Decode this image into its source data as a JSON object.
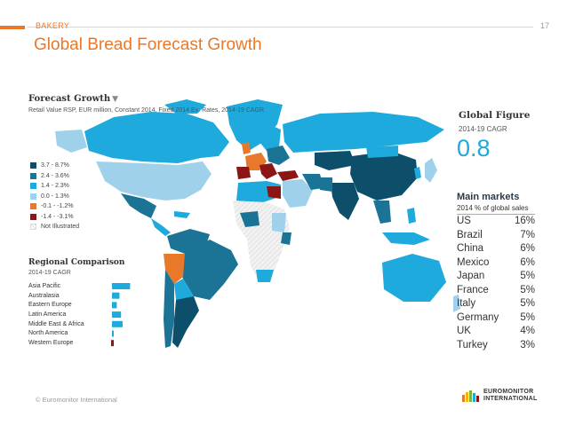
{
  "header": {
    "section": "BAKERY",
    "page_number": "17",
    "title": "Global Bread Forecast Growth"
  },
  "colors": {
    "dark_teal": "#0d4f6b",
    "teal": "#1b7396",
    "mid_blue": "#1eaadc",
    "light_blue": "#9fd2ea",
    "orange": "#e8792b",
    "dark_red": "#8c1515",
    "not_illustrated": "#e6e6e6"
  },
  "map": {
    "title": "Forecast Growth",
    "subtitle": "Retail Value RSP, EUR million, Constant 2014, Fixed 2014 Ex. Rates, 2014-19 CAGR",
    "legend": [
      {
        "label": "3.7 - 8.7%",
        "color": "#0d4f6b"
      },
      {
        "label": "2.4 - 3.6%",
        "color": "#1b7396"
      },
      {
        "label": "1.4 - 2.3%",
        "color": "#1eaadc"
      },
      {
        "label": "0.0 - 1.3%",
        "color": "#9fd2ea"
      },
      {
        "label": "-0.1 - -1.2%",
        "color": "#e8792b"
      },
      {
        "label": "-1.4 - -3.1%",
        "color": "#8c1515"
      },
      {
        "label": "Not Illustrated",
        "color": "hatch"
      }
    ]
  },
  "regional_comparison": {
    "title": "Regional Comparison",
    "subtitle": "2014-19 CAGR",
    "regions": [
      {
        "label": "Asia Pacific",
        "value": 3.4,
        "color": "#1eaadc"
      },
      {
        "label": "Australasia",
        "value": 1.4,
        "color": "#1eaadc"
      },
      {
        "label": "Eastern Europe",
        "value": 0.9,
        "color": "#1eaadc"
      },
      {
        "label": "Latin America",
        "value": 1.7,
        "color": "#1eaadc"
      },
      {
        "label": "Middle East & Africa",
        "value": 2.0,
        "color": "#1eaadc"
      },
      {
        "label": "North America",
        "value": 0.3,
        "color": "#1eaadc"
      },
      {
        "label": "Western Europe",
        "value": -0.5,
        "color": "#8c1515"
      }
    ]
  },
  "global_figure": {
    "title": "Global Figure",
    "subtitle": "2014-19 CAGR",
    "value": "0.8"
  },
  "main_markets": {
    "title": "Main markets",
    "subtitle": "2014 % of global sales",
    "rows": [
      {
        "country": "US",
        "share": "16%"
      },
      {
        "country": "Brazil",
        "share": "7%"
      },
      {
        "country": "China",
        "share": "6%"
      },
      {
        "country": "Mexico",
        "share": "6%"
      },
      {
        "country": "Japan",
        "share": "5%"
      },
      {
        "country": "France",
        "share": "5%"
      },
      {
        "country": "Italy",
        "share": "5%"
      },
      {
        "country": "Germany",
        "share": "5%"
      },
      {
        "country": "UK",
        "share": "4%"
      },
      {
        "country": "Turkey",
        "share": "3%"
      }
    ]
  },
  "footer": {
    "copyright": "© Euromonitor International",
    "logo_line1": "EUROMONITOR",
    "logo_line2": "INTERNATIONAL"
  }
}
